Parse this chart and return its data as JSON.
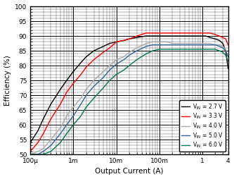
{
  "title": "",
  "xlabel": "Output Current (A)",
  "ylabel": "Efficiency (%)",
  "xlim": [
    0.0001,
    4
  ],
  "ylim": [
    50,
    100
  ],
  "yticks": [
    50,
    55,
    60,
    65,
    70,
    75,
    80,
    85,
    90,
    95,
    100
  ],
  "legend_labels": [
    "V_IN = 2.7 V",
    "V_IN = 3.3 V",
    "V_IN = 4.0 V",
    "V_IN = 5.0 V",
    "V_IN = 6.0 V"
  ],
  "curves": {
    "vin_2p7": {
      "color": "#000000",
      "x": [
        0.0001,
        0.00015,
        0.0002,
        0.0003,
        0.0005,
        0.0007,
        0.001,
        0.0015,
        0.002,
        0.003,
        0.005,
        0.007,
        0.01,
        0.015,
        0.02,
        0.03,
        0.05,
        0.07,
        0.1,
        0.15,
        0.2,
        0.3,
        0.4,
        0.5,
        0.7,
        1.0,
        1.2,
        1.5,
        2.0,
        2.5,
        3.0,
        3.5,
        4.0
      ],
      "y": [
        54,
        58,
        62,
        67,
        72,
        75,
        78,
        81,
        83,
        85,
        86.5,
        87.5,
        88,
        88.5,
        89,
        89.5,
        90,
        90,
        90,
        90,
        90,
        90,
        90,
        90,
        90,
        90,
        90,
        89.5,
        89,
        88.5,
        87.5,
        85,
        79
      ]
    },
    "vin_3p3": {
      "color": "#ff0000",
      "x": [
        0.0001,
        0.00015,
        0.0002,
        0.0003,
        0.0005,
        0.0007,
        0.001,
        0.0015,
        0.002,
        0.003,
        0.005,
        0.007,
        0.01,
        0.015,
        0.02,
        0.03,
        0.05,
        0.07,
        0.1,
        0.15,
        0.2,
        0.3,
        0.4,
        0.5,
        0.7,
        1.0,
        1.2,
        1.5,
        2.0,
        2.5,
        3.0,
        3.5,
        4.0
      ],
      "y": [
        51,
        54,
        57,
        62,
        67,
        71,
        74,
        77,
        79.5,
        82,
        84.5,
        86,
        88,
        88.5,
        89,
        90,
        91,
        91,
        91,
        91,
        91,
        91,
        91,
        91,
        91,
        91,
        91,
        91,
        90.5,
        90,
        89.5,
        89,
        87
      ]
    },
    "vin_4p0": {
      "color": "#aaaaaa",
      "x": [
        0.0001,
        0.00015,
        0.0002,
        0.0003,
        0.0005,
        0.0007,
        0.001,
        0.0015,
        0.002,
        0.003,
        0.005,
        0.007,
        0.01,
        0.015,
        0.02,
        0.03,
        0.05,
        0.07,
        0.1,
        0.15,
        0.2,
        0.3,
        0.4,
        0.5,
        0.7,
        1.0,
        1.2,
        1.5,
        2.0,
        2.5,
        3.0,
        3.5,
        4.0
      ],
      "y": [
        50,
        51,
        52,
        55,
        59,
        63,
        66,
        69,
        72,
        75,
        78,
        80,
        82,
        83,
        84.5,
        86,
        87.5,
        88,
        88,
        88,
        87.5,
        87.5,
        87.5,
        87.5,
        87.5,
        87.5,
        87.5,
        87.5,
        87,
        87,
        86.5,
        85.5,
        83
      ]
    },
    "vin_5p0": {
      "color": "#336699",
      "x": [
        0.0001,
        0.00015,
        0.0002,
        0.0003,
        0.0005,
        0.0007,
        0.001,
        0.0015,
        0.002,
        0.003,
        0.005,
        0.007,
        0.01,
        0.015,
        0.02,
        0.03,
        0.05,
        0.07,
        0.1,
        0.15,
        0.2,
        0.3,
        0.4,
        0.5,
        0.7,
        1.0,
        1.2,
        1.5,
        2.0,
        2.5,
        3.0,
        3.5,
        4.0
      ],
      "y": [
        50,
        50,
        51,
        53,
        57,
        60,
        63,
        67,
        70,
        73,
        76,
        78.5,
        80.5,
        82,
        83.5,
        85,
        86.5,
        87,
        87,
        87,
        87,
        87,
        87,
        87,
        87,
        87,
        87,
        87,
        87,
        86.5,
        86,
        85,
        83
      ]
    },
    "vin_6p0": {
      "color": "#007755",
      "x": [
        0.0001,
        0.00015,
        0.0002,
        0.0003,
        0.0005,
        0.0007,
        0.001,
        0.0015,
        0.002,
        0.003,
        0.005,
        0.007,
        0.01,
        0.015,
        0.02,
        0.03,
        0.05,
        0.07,
        0.1,
        0.15,
        0.2,
        0.3,
        0.4,
        0.5,
        0.7,
        1.0,
        1.2,
        1.5,
        2.0,
        2.5,
        3.0,
        3.5,
        4.0
      ],
      "y": [
        50,
        50,
        50,
        51,
        54,
        57,
        60,
        63,
        66,
        69,
        72.5,
        75,
        77,
        78.5,
        80,
        82,
        84,
        85,
        85.5,
        85.5,
        85.5,
        85.5,
        85.5,
        85.5,
        85.5,
        85.5,
        85.5,
        85.5,
        85.5,
        85,
        84.5,
        83.5,
        81.5
      ]
    }
  },
  "background_color": "#ffffff",
  "grid_major_color": "#000000",
  "grid_minor_color": "#000000"
}
